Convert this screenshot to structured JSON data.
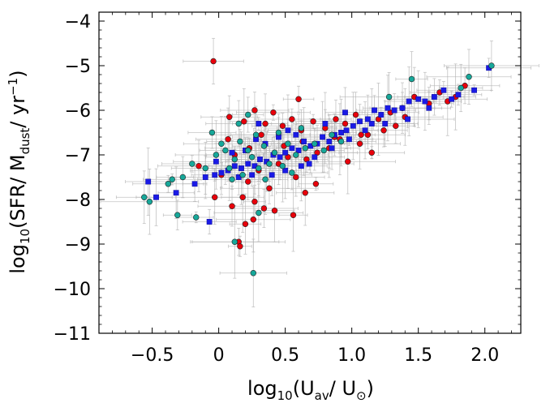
{
  "chart_data": {
    "type": "scatter",
    "xlim": [
      -0.9,
      2.27
    ],
    "ylim": [
      -11,
      -3.8
    ],
    "xticks": [
      -0.5,
      0,
      0.5,
      1.0,
      1.5,
      2.0
    ],
    "xtick_labels": [
      "−0.5",
      "0",
      "0.5",
      "1.0",
      "1.5",
      "2.0"
    ],
    "yticks": [
      -11,
      -10,
      -9,
      -8,
      -7,
      -6,
      -5,
      -4
    ],
    "ytick_labels": [
      "−11",
      "−10",
      "−9",
      "−8",
      "−7",
      "−6",
      "−5",
      "−4"
    ],
    "xlabel": {
      "pre": "log",
      "sub1": "10",
      "mid": "(U",
      "sub2": "av",
      "mid2": "/ U",
      "sub3": "⊙",
      "post": ")"
    },
    "ylabel": {
      "pre": "log",
      "sub1": "10",
      "mid": "(SFR/ M",
      "sub2": "dust",
      "mid2": "/ yr",
      "sup": "−1",
      "post": ")"
    },
    "grid": false,
    "colors": {
      "red": "#e8000b",
      "blue": "#1a1ae6",
      "teal": "#17a89a",
      "errorbar": "#b0b0b0"
    },
    "series": [
      {
        "marker": "circle",
        "color": "red",
        "points": [
          [
            -0.04,
            -4.9
          ],
          [
            0.6,
            -5.75
          ],
          [
            0.08,
            -6.15
          ],
          [
            0.19,
            -6.25
          ],
          [
            0.27,
            -6.0
          ],
          [
            0.35,
            -6.3
          ],
          [
            0.41,
            -6.05
          ],
          [
            0.48,
            -6.35
          ],
          [
            0.55,
            -6.2
          ],
          [
            0.62,
            -6.45
          ],
          [
            0.71,
            -6.25
          ],
          [
            0.8,
            -6.4
          ],
          [
            0.88,
            -6.2
          ],
          [
            0.95,
            -6.3
          ],
          [
            1.03,
            -6.1
          ],
          [
            1.12,
            -6.55
          ],
          [
            1.2,
            -6.2
          ],
          [
            1.29,
            -6.05
          ],
          [
            1.38,
            -5.95
          ],
          [
            1.47,
            -5.7
          ],
          [
            1.58,
            -5.85
          ],
          [
            1.72,
            -5.8
          ],
          [
            1.78,
            -5.7
          ],
          [
            1.66,
            -5.6
          ],
          [
            1.85,
            -5.45
          ],
          [
            -0.15,
            -7.25
          ],
          [
            0.02,
            -7.45
          ],
          [
            0.12,
            -7.0
          ],
          [
            0.22,
            -7.6
          ],
          [
            0.3,
            -7.35
          ],
          [
            0.38,
            -7.75
          ],
          [
            0.45,
            -7.2
          ],
          [
            0.52,
            -7.05
          ],
          [
            0.58,
            -7.5
          ],
          [
            0.66,
            -7.1
          ],
          [
            0.74,
            -6.95
          ],
          [
            0.83,
            -6.85
          ],
          [
            0.91,
            -6.65
          ],
          [
            0.97,
            -7.15
          ],
          [
            1.06,
            -6.75
          ],
          [
            1.15,
            -6.95
          ],
          [
            1.24,
            -6.45
          ],
          [
            1.33,
            -6.35
          ],
          [
            1.4,
            -6.15
          ],
          [
            0.18,
            -7.95
          ],
          [
            0.27,
            -8.05
          ],
          [
            0.34,
            -8.2
          ],
          [
            0.56,
            -8.35
          ],
          [
            0.65,
            -7.85
          ],
          [
            0.1,
            -8.15
          ],
          [
            0.2,
            -8.55
          ],
          [
            0.15,
            -8.95
          ],
          [
            0.16,
            -9.05
          ],
          [
            -0.03,
            -7.95
          ],
          [
            0.26,
            -8.45
          ],
          [
            0.42,
            -8.25
          ],
          [
            0.73,
            -7.65
          ],
          [
            1.07,
            -6.55
          ],
          [
            0.07,
            -6.65
          ],
          [
            0.23,
            -6.85
          ],
          [
            0.32,
            -6.55
          ],
          [
            0.49,
            -6.8
          ],
          [
            0.63,
            -6.7
          ],
          [
            0.87,
            -6.6
          ]
        ]
      },
      {
        "marker": "square",
        "color": "blue",
        "points": [
          [
            2.03,
            -5.05
          ],
          [
            1.92,
            -5.55
          ],
          [
            1.75,
            -5.75
          ],
          [
            1.69,
            -5.55
          ],
          [
            1.62,
            -5.7
          ],
          [
            1.55,
            -5.8
          ],
          [
            1.5,
            -5.75
          ],
          [
            1.43,
            -5.8
          ],
          [
            1.38,
            -5.95
          ],
          [
            1.32,
            -6.0
          ],
          [
            1.27,
            -5.95
          ],
          [
            1.22,
            -6.1
          ],
          [
            1.17,
            -6.0
          ],
          [
            1.12,
            -6.2
          ],
          [
            1.06,
            -6.25
          ],
          [
            1.01,
            -6.35
          ],
          [
            0.96,
            -6.45
          ],
          [
            0.92,
            -6.5
          ],
          [
            0.87,
            -6.55
          ],
          [
            0.83,
            -6.7
          ],
          [
            0.78,
            -6.6
          ],
          [
            0.74,
            -6.75
          ],
          [
            0.69,
            -6.8
          ],
          [
            0.64,
            -6.7
          ],
          [
            0.6,
            -6.9
          ],
          [
            0.55,
            -6.85
          ],
          [
            0.5,
            -6.95
          ],
          [
            0.46,
            -7.05
          ],
          [
            0.41,
            -7.0
          ],
          [
            0.36,
            -7.15
          ],
          [
            0.31,
            -7.1
          ],
          [
            0.27,
            -7.25
          ],
          [
            0.22,
            -7.2
          ],
          [
            0.17,
            -7.3
          ],
          [
            0.12,
            -7.25
          ],
          [
            0.07,
            -7.35
          ],
          [
            0.02,
            -7.4
          ],
          [
            -0.03,
            -7.45
          ],
          [
            -0.1,
            -7.5
          ],
          [
            -0.18,
            -7.65
          ],
          [
            -0.32,
            -7.85
          ],
          [
            -0.47,
            -7.95
          ],
          [
            -0.53,
            -7.6
          ],
          [
            0.15,
            -7.5
          ],
          [
            0.25,
            -7.45
          ],
          [
            0.35,
            -6.75
          ],
          [
            0.45,
            -6.6
          ],
          [
            0.58,
            -6.55
          ],
          [
            0.72,
            -7.05
          ],
          [
            0.85,
            -6.85
          ],
          [
            0.98,
            -6.65
          ],
          [
            1.1,
            -6.45
          ],
          [
            1.25,
            -6.3
          ],
          [
            1.42,
            -6.2
          ],
          [
            -0.07,
            -8.5
          ],
          [
            0.3,
            -6.3
          ],
          [
            0.5,
            -7.35
          ],
          [
            0.68,
            -7.2
          ],
          [
            0.8,
            -6.3
          ],
          [
            0.2,
            -6.9
          ],
          [
            0.4,
            -7.45
          ],
          [
            0.95,
            -6.05
          ],
          [
            1.15,
            -6.3
          ],
          [
            0.62,
            -7.25
          ],
          [
            -0.02,
            -7.15
          ],
          [
            0.1,
            -6.95
          ],
          [
            0.28,
            -6.65
          ],
          [
            0.52,
            -6.45
          ],
          [
            1.58,
            -5.95
          ],
          [
            1.8,
            -5.65
          ]
        ]
      },
      {
        "marker": "circle",
        "color": "teal",
        "points": [
          [
            2.05,
            -5.0
          ],
          [
            1.88,
            -5.25
          ],
          [
            1.82,
            -5.5
          ],
          [
            1.45,
            -5.3
          ],
          [
            1.28,
            -5.7
          ],
          [
            -0.05,
            -6.5
          ],
          [
            0.15,
            -6.3
          ],
          [
            0.22,
            -6.1
          ],
          [
            0.28,
            -6.55
          ],
          [
            0.34,
            -6.8
          ],
          [
            0.38,
            -7.2
          ],
          [
            0.12,
            -7.1
          ],
          [
            0.05,
            -6.9
          ],
          [
            -0.02,
            -7.0
          ],
          [
            0.08,
            -7.3
          ],
          [
            0.18,
            -7.45
          ],
          [
            0.25,
            -7.05
          ],
          [
            0.3,
            -7.3
          ],
          [
            0.42,
            -6.95
          ],
          [
            0.48,
            -7.25
          ],
          [
            0.52,
            -6.75
          ],
          [
            0.58,
            -7.0
          ],
          [
            0.65,
            -6.85
          ],
          [
            0.72,
            -6.75
          ],
          [
            0.79,
            -6.9
          ],
          [
            0.16,
            -6.7
          ],
          [
            -0.1,
            -7.3
          ],
          [
            -0.2,
            -7.2
          ],
          [
            -0.27,
            -7.5
          ],
          [
            -0.35,
            -7.55
          ],
          [
            -0.38,
            -7.65
          ],
          [
            -0.31,
            -8.35
          ],
          [
            -0.56,
            -7.95
          ],
          [
            -0.52,
            -8.05
          ],
          [
            -0.17,
            -8.4
          ],
          [
            0.12,
            -8.95
          ],
          [
            0.3,
            -8.3
          ],
          [
            0.26,
            -9.65
          ],
          [
            0.45,
            -6.5
          ],
          [
            0.62,
            -6.4
          ],
          [
            0.55,
            -7.4
          ],
          [
            0.35,
            -7.55
          ],
          [
            0.1,
            -7.55
          ],
          [
            0.02,
            -6.75
          ],
          [
            0.85,
            -6.55
          ],
          [
            0.92,
            -6.7
          ],
          [
            0.22,
            -6.9
          ]
        ]
      }
    ]
  }
}
